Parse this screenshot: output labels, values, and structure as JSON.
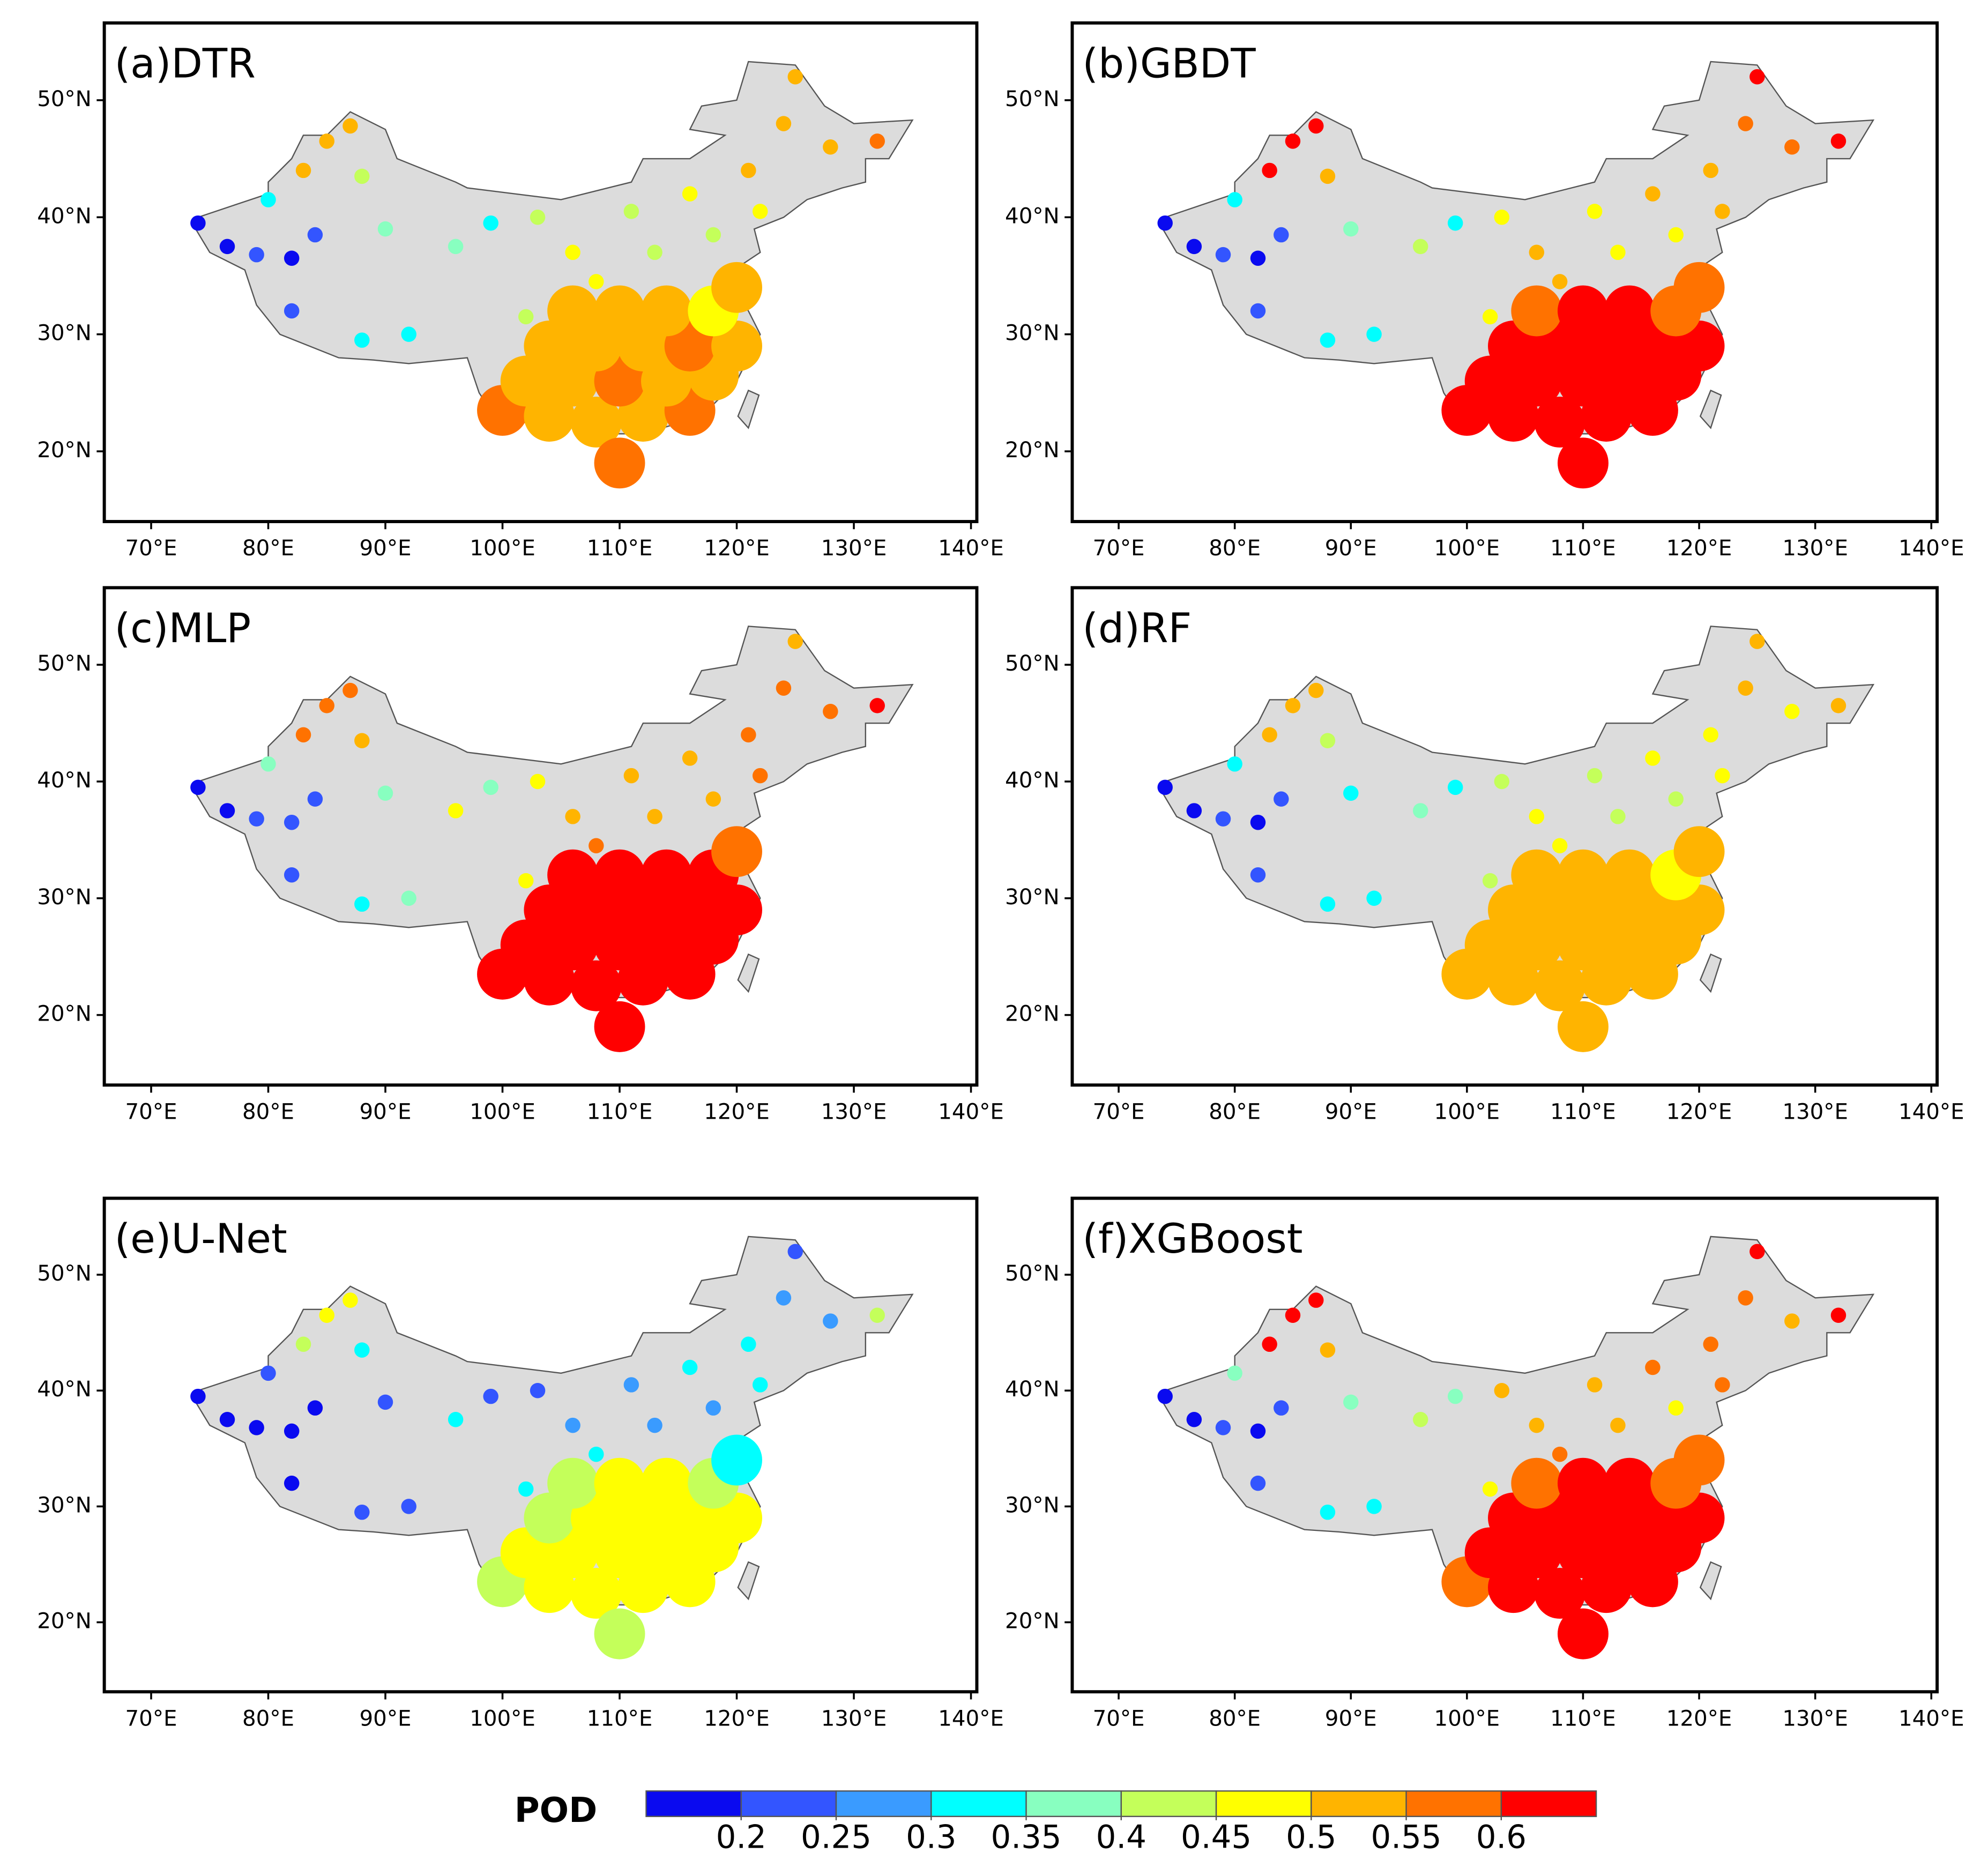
{
  "map": {
    "xlim": [
      66,
      140.5
    ],
    "ylim": [
      14,
      56.6
    ],
    "xticks": [
      {
        "value": 70,
        "label": "70°E"
      },
      {
        "value": 80,
        "label": "80°E"
      },
      {
        "value": 90,
        "label": "90°E"
      },
      {
        "value": 100,
        "label": "100°E"
      },
      {
        "value": 110,
        "label": "110°E"
      },
      {
        "value": 120,
        "label": "120°E"
      },
      {
        "value": 130,
        "label": "130°E"
      },
      {
        "value": 140,
        "label": "140°E"
      }
    ],
    "yticks": [
      {
        "value": 20,
        "label": "20°N"
      },
      {
        "value": 30,
        "label": "30°N"
      },
      {
        "value": 40,
        "label": "40°N"
      },
      {
        "value": 50,
        "label": "50°N"
      }
    ]
  },
  "stations": [
    [
      74,
      39.5
    ],
    [
      76.5,
      37.5
    ],
    [
      79,
      36.8
    ],
    [
      82,
      36.5
    ],
    [
      84,
      38.5
    ],
    [
      80,
      41.5
    ],
    [
      83,
      44
    ],
    [
      85,
      46.5
    ],
    [
      88,
      43.5
    ],
    [
      87,
      47.8
    ],
    [
      90,
      39
    ],
    [
      82,
      32
    ],
    [
      88,
      29.5
    ],
    [
      92,
      30
    ],
    [
      96,
      37.5
    ],
    [
      99,
      39.5
    ],
    [
      103,
      40
    ],
    [
      106,
      37
    ],
    [
      111,
      40.5
    ],
    [
      116,
      42
    ],
    [
      121,
      44
    ],
    [
      124,
      48
    ],
    [
      128,
      46
    ],
    [
      132,
      46.5
    ],
    [
      125,
      52
    ],
    [
      122,
      40.5
    ],
    [
      118,
      38.5
    ],
    [
      113,
      37
    ],
    [
      108,
      34.5
    ],
    [
      102,
      31.5
    ],
    [
      100,
      23.5
    ],
    [
      104,
      23
    ],
    [
      108,
      22.5
    ],
    [
      112,
      23
    ],
    [
      116,
      23.5
    ],
    [
      102,
      26
    ],
    [
      106,
      26
    ],
    [
      110,
      26
    ],
    [
      114,
      26
    ],
    [
      118,
      26.5
    ],
    [
      104,
      29
    ],
    [
      108,
      29
    ],
    [
      112,
      29
    ],
    [
      116,
      29
    ],
    [
      120,
      29
    ],
    [
      106,
      32
    ],
    [
      110,
      32
    ],
    [
      114,
      32
    ],
    [
      118,
      32
    ],
    [
      120,
      34
    ],
    [
      110,
      19
    ]
  ],
  "panels": [
    {
      "title": "(a)DTR",
      "values": [
        0.18,
        0.18,
        0.2,
        0.18,
        0.22,
        0.32,
        0.5,
        0.52,
        0.42,
        0.5,
        0.36,
        0.22,
        0.33,
        0.3,
        0.38,
        0.3,
        0.4,
        0.45,
        0.42,
        0.48,
        0.5,
        0.52,
        0.5,
        0.55,
        0.52,
        0.48,
        0.42,
        0.4,
        0.47,
        0.4,
        0.57,
        0.52,
        0.52,
        0.52,
        0.57,
        0.52,
        0.52,
        0.57,
        0.52,
        0.52,
        0.52,
        0.52,
        0.52,
        0.57,
        0.52,
        0.52,
        0.52,
        0.52,
        0.47,
        0.52,
        0.57
      ]
    },
    {
      "title": "(b)GBDT",
      "values": [
        0.18,
        0.18,
        0.2,
        0.18,
        0.22,
        0.33,
        0.62,
        0.62,
        0.5,
        0.62,
        0.36,
        0.22,
        0.3,
        0.33,
        0.42,
        0.33,
        0.48,
        0.5,
        0.47,
        0.52,
        0.52,
        0.57,
        0.57,
        0.62,
        0.62,
        0.52,
        0.45,
        0.47,
        0.52,
        0.45,
        0.62,
        0.62,
        0.62,
        0.62,
        0.62,
        0.62,
        0.62,
        0.62,
        0.62,
        0.62,
        0.62,
        0.62,
        0.62,
        0.62,
        0.62,
        0.57,
        0.62,
        0.62,
        0.57,
        0.57,
        0.62
      ]
    },
    {
      "title": "(c)MLP",
      "values": [
        0.18,
        0.18,
        0.22,
        0.2,
        0.22,
        0.35,
        0.57,
        0.57,
        0.5,
        0.57,
        0.36,
        0.22,
        0.3,
        0.35,
        0.45,
        0.36,
        0.47,
        0.52,
        0.5,
        0.52,
        0.55,
        0.57,
        0.55,
        0.62,
        0.52,
        0.57,
        0.52,
        0.52,
        0.57,
        0.47,
        0.62,
        0.62,
        0.62,
        0.62,
        0.62,
        0.62,
        0.62,
        0.62,
        0.62,
        0.62,
        0.62,
        0.62,
        0.62,
        0.62,
        0.62,
        0.62,
        0.62,
        0.62,
        0.62,
        0.57,
        0.62
      ]
    },
    {
      "title": "(d)RF",
      "values": [
        0.18,
        0.18,
        0.2,
        0.18,
        0.22,
        0.32,
        0.52,
        0.5,
        0.4,
        0.5,
        0.33,
        0.22,
        0.3,
        0.3,
        0.38,
        0.32,
        0.42,
        0.47,
        0.42,
        0.47,
        0.47,
        0.5,
        0.47,
        0.52,
        0.5,
        0.45,
        0.4,
        0.42,
        0.47,
        0.42,
        0.52,
        0.52,
        0.52,
        0.52,
        0.52,
        0.52,
        0.52,
        0.52,
        0.52,
        0.52,
        0.52,
        0.52,
        0.52,
        0.52,
        0.52,
        0.52,
        0.52,
        0.52,
        0.47,
        0.5,
        0.52
      ]
    },
    {
      "title": "(e)U-Net",
      "values": [
        0.18,
        0.18,
        0.18,
        0.18,
        0.18,
        0.22,
        0.42,
        0.45,
        0.3,
        0.47,
        0.22,
        0.18,
        0.22,
        0.22,
        0.3,
        0.22,
        0.22,
        0.27,
        0.25,
        0.3,
        0.32,
        0.27,
        0.25,
        0.42,
        0.22,
        0.32,
        0.27,
        0.25,
        0.3,
        0.3,
        0.42,
        0.47,
        0.47,
        0.47,
        0.47,
        0.47,
        0.47,
        0.47,
        0.47,
        0.47,
        0.42,
        0.47,
        0.47,
        0.47,
        0.47,
        0.42,
        0.47,
        0.47,
        0.42,
        0.3,
        0.42
      ]
    },
    {
      "title": "(f)XGBoost",
      "values": [
        0.18,
        0.18,
        0.2,
        0.18,
        0.22,
        0.35,
        0.62,
        0.62,
        0.52,
        0.62,
        0.36,
        0.22,
        0.32,
        0.33,
        0.42,
        0.36,
        0.5,
        0.52,
        0.5,
        0.55,
        0.55,
        0.57,
        0.52,
        0.62,
        0.62,
        0.57,
        0.47,
        0.5,
        0.57,
        0.47,
        0.57,
        0.62,
        0.62,
        0.62,
        0.62,
        0.62,
        0.62,
        0.62,
        0.62,
        0.62,
        0.62,
        0.62,
        0.62,
        0.62,
        0.62,
        0.57,
        0.62,
        0.62,
        0.57,
        0.57,
        0.62
      ]
    }
  ],
  "colorbar": {
    "label": "POD",
    "ticks": [
      0.2,
      0.25,
      0.3,
      0.35,
      0.4,
      0.45,
      0.5,
      0.55,
      0.6
    ],
    "colors": [
      "#0a0af0",
      "#3355ff",
      "#3a9bff",
      "#00ffff",
      "#88ffc0",
      "#c4ff5a",
      "#ffff00",
      "#ffb400",
      "#ff7200",
      "#ff0000"
    ]
  }
}
